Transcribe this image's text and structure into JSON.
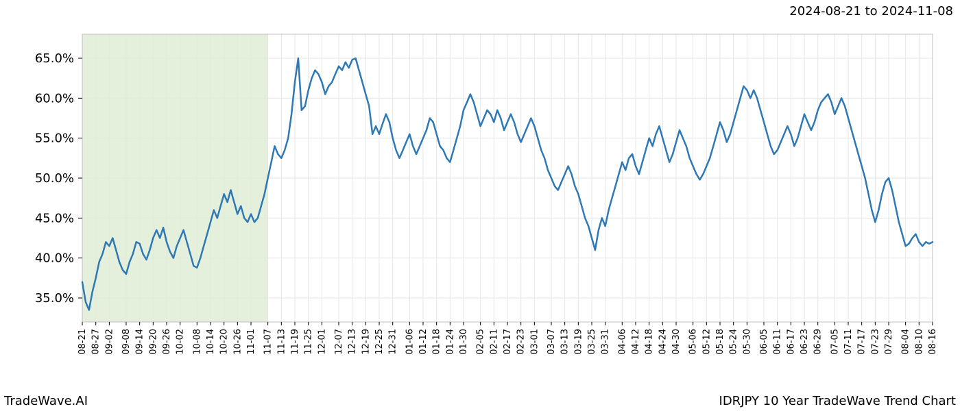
{
  "header": {
    "date_range": "2024-08-21 to 2024-11-08"
  },
  "footer": {
    "left": "TradeWave.AI",
    "right": "IDRJPY 10 Year TradeWave Trend Chart"
  },
  "chart": {
    "type": "line",
    "background_color": "#ffffff",
    "plot_border_color": "#bfbfbf",
    "grid_color": "#e6e6e6",
    "highlight_fill": "#dfecd6",
    "highlight_x_start": "08-21",
    "highlight_x_end": "11-07",
    "line_color": "#2e78b6",
    "line_width": 2.5,
    "ylim": [
      32,
      68
    ],
    "yticks": [
      35,
      40,
      45,
      50,
      55,
      60,
      65
    ],
    "ytick_labels": [
      "35.0%",
      "40.0%",
      "45.0%",
      "50.0%",
      "55.0%",
      "60.0%",
      "65.0%"
    ],
    "tick_fontsize": 18,
    "xtick_fontsize": 13,
    "xtick_rotate": 90,
    "x_labels": [
      "08-21",
      "08-27",
      "09-02",
      "09-08",
      "09-14",
      "09-20",
      "09-26",
      "10-02",
      "10-08",
      "10-14",
      "10-20",
      "10-26",
      "11-01",
      "11-07",
      "11-13",
      "11-19",
      "11-25",
      "12-01",
      "12-07",
      "12-13",
      "12-19",
      "12-25",
      "12-31",
      "01-06",
      "01-12",
      "01-18",
      "01-24",
      "01-30",
      "02-05",
      "02-11",
      "02-17",
      "02-23",
      "03-01",
      "03-07",
      "03-13",
      "03-19",
      "03-25",
      "03-31",
      "04-06",
      "04-12",
      "04-18",
      "04-24",
      "04-30",
      "05-06",
      "05-12",
      "05-18",
      "05-24",
      "05-30",
      "06-05",
      "06-11",
      "06-17",
      "06-23",
      "06-29",
      "07-05",
      "07-11",
      "07-17",
      "07-23",
      "07-29",
      "08-04",
      "08-10",
      "08-16"
    ],
    "values": [
      37.0,
      34.5,
      33.5,
      35.8,
      37.5,
      39.5,
      40.5,
      42.0,
      41.5,
      42.5,
      41.0,
      39.5,
      38.5,
      38.0,
      39.5,
      40.5,
      42.0,
      41.8,
      40.5,
      39.8,
      41.0,
      42.5,
      43.5,
      42.5,
      43.8,
      42.0,
      40.8,
      40.0,
      41.5,
      42.5,
      43.5,
      42.0,
      40.5,
      39.0,
      38.8,
      40.0,
      41.5,
      43.0,
      44.5,
      46.0,
      45.0,
      46.5,
      48.0,
      47.0,
      48.5,
      47.0,
      45.5,
      46.5,
      45.0,
      44.5,
      45.5,
      44.5,
      45.0,
      46.5,
      48.0,
      50.0,
      52.0,
      54.0,
      53.0,
      52.5,
      53.5,
      55.0,
      58.0,
      62.0,
      65.0,
      58.5,
      59.0,
      61.0,
      62.5,
      63.5,
      63.0,
      62.0,
      60.5,
      61.5,
      62.0,
      63.0,
      64.0,
      63.5,
      64.5,
      63.8,
      64.8,
      65.0,
      63.5,
      62.0,
      60.5,
      59.0,
      55.5,
      56.5,
      55.5,
      56.8,
      58.0,
      57.0,
      55.0,
      53.5,
      52.5,
      53.5,
      54.5,
      55.5,
      54.0,
      53.0,
      54.0,
      55.0,
      56.0,
      57.5,
      57.0,
      55.5,
      54.0,
      53.5,
      52.5,
      52.0,
      53.5,
      55.0,
      56.5,
      58.5,
      59.5,
      60.5,
      59.5,
      58.0,
      56.5,
      57.5,
      58.5,
      58.0,
      57.0,
      58.5,
      57.5,
      56.0,
      57.0,
      58.0,
      57.0,
      55.5,
      54.5,
      55.5,
      56.5,
      57.5,
      56.5,
      55.0,
      53.5,
      52.5,
      51.0,
      50.0,
      49.0,
      48.5,
      49.5,
      50.5,
      51.5,
      50.5,
      49.0,
      48.0,
      46.5,
      45.0,
      44.0,
      42.5,
      41.0,
      43.5,
      45.0,
      44.0,
      46.0,
      47.5,
      49.0,
      50.5,
      52.0,
      51.0,
      52.5,
      53.0,
      51.5,
      50.5,
      52.0,
      53.5,
      55.0,
      54.0,
      55.5,
      56.5,
      55.0,
      53.5,
      52.0,
      53.0,
      54.5,
      56.0,
      55.0,
      54.0,
      52.5,
      51.5,
      50.5,
      49.8,
      50.5,
      51.5,
      52.5,
      54.0,
      55.5,
      57.0,
      56.0,
      54.5,
      55.5,
      57.0,
      58.5,
      60.0,
      61.5,
      61.0,
      60.0,
      61.0,
      60.0,
      58.5,
      57.0,
      55.5,
      54.0,
      53.0,
      53.5,
      54.5,
      55.5,
      56.5,
      55.5,
      54.0,
      55.0,
      56.5,
      58.0,
      57.0,
      56.0,
      57.0,
      58.5,
      59.5,
      60.0,
      60.5,
      59.5,
      58.0,
      59.0,
      60.0,
      59.0,
      57.5,
      56.0,
      54.5,
      53.0,
      51.5,
      50.0,
      48.0,
      46.0,
      44.5,
      46.0,
      48.0,
      49.5,
      50.0,
      48.5,
      46.5,
      44.5,
      43.0,
      41.5,
      41.8,
      42.5,
      43.0,
      42.0,
      41.5,
      42.0,
      41.8,
      42.0
    ]
  }
}
